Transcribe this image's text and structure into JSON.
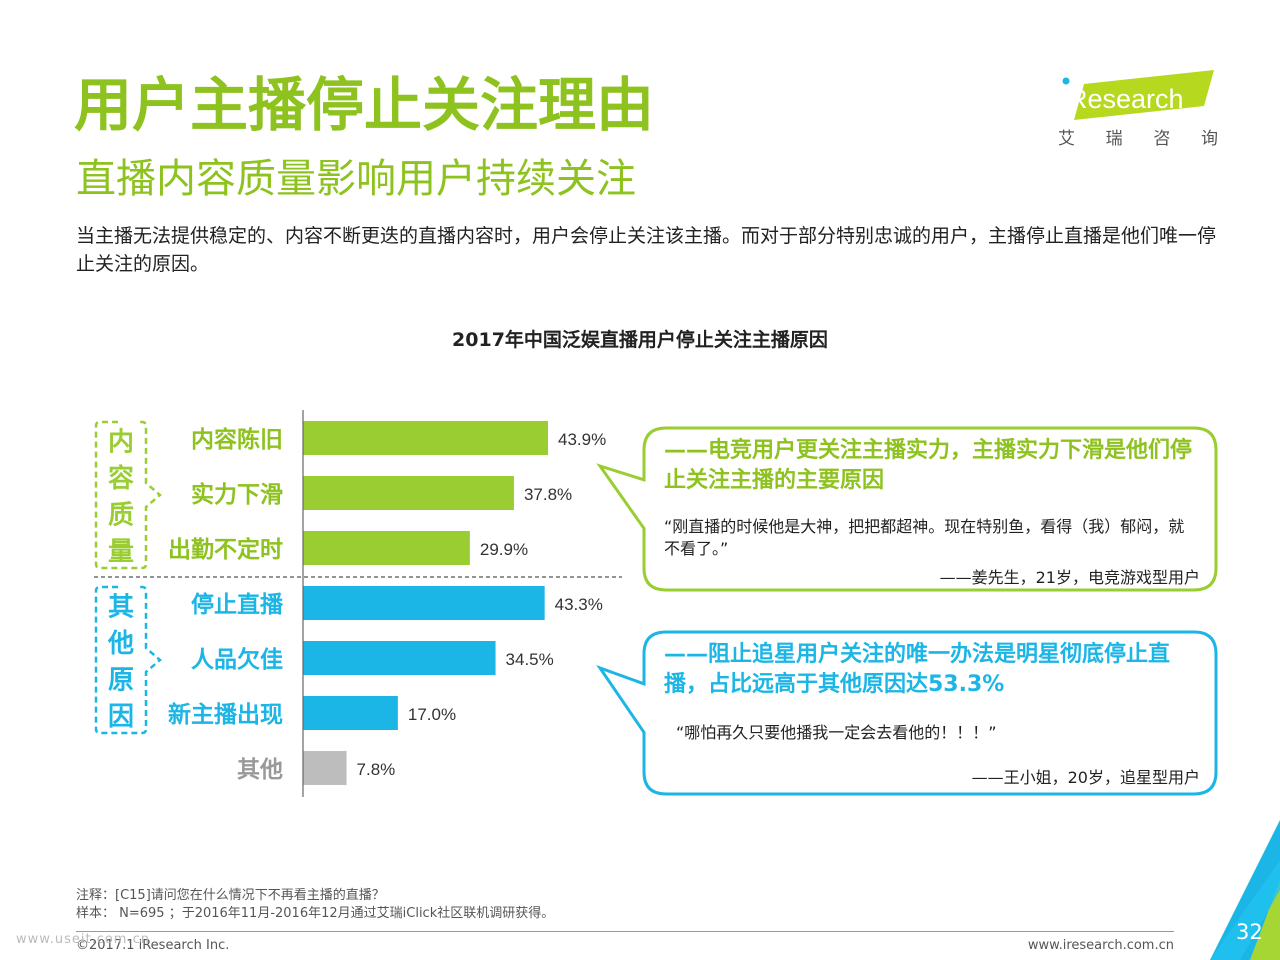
{
  "header": {
    "title": "用户主播停止关注理由",
    "subtitle": "直播内容质量影响用户持续关注",
    "description": "当主播无法提供稳定的、内容不断更迭的直播内容时，用户会停止关注该主播。而对于部分特别忠诚的用户，主播停止直播是他们唯一停止关注的原因。"
  },
  "logo": {
    "text": "iResearch",
    "sub": [
      "艾",
      "瑞",
      "咨",
      "询"
    ]
  },
  "colors": {
    "green": "#9ACD32",
    "green_text": "#8DC21F",
    "blue": "#1BB5E6",
    "gray": "#BDBDBD",
    "page_badge": "#1BB5E6"
  },
  "chart_data": {
    "type": "bar",
    "orientation": "horizontal",
    "title": "2017年中国泛娱直播用户停止关注主播原因",
    "categories": [
      "内容陈旧",
      "实力下滑",
      "出勤不定时",
      "停止直播",
      "人品欠佳",
      "新主播出现",
      "其他"
    ],
    "values": [
      43.9,
      37.8,
      29.9,
      43.3,
      34.5,
      17.0,
      7.8
    ],
    "value_labels": [
      "43.9%",
      "37.8%",
      "29.9%",
      "43.3%",
      "34.5%",
      "17.0%",
      "7.8%"
    ],
    "groups": [
      {
        "label": "内容质量",
        "chars": [
          "内",
          "容",
          "质",
          "量"
        ],
        "color": "green",
        "indices": [
          0,
          1,
          2
        ]
      },
      {
        "label": "其他原因",
        "chars": [
          "其",
          "他",
          "原",
          "因"
        ],
        "color": "blue",
        "indices": [
          3,
          4,
          5
        ]
      }
    ],
    "bar_colors": [
      "green",
      "green",
      "green",
      "blue",
      "blue",
      "blue",
      "gray"
    ],
    "xlim": [
      0,
      50
    ]
  },
  "callouts": [
    {
      "headline": "——电竞用户更关注主播实力，主播实力下滑是他们停止关注主播的主要原因",
      "quote": "“刚直播的时候他是大神，把把都超神。现在特别鱼，看得（我）郁闷，就不看了。”",
      "attribution": "——姜先生，21岁，电竞游戏型用户"
    },
    {
      "headline": "——阻止追星用户关注的唯一办法是明星彻底停止直播，占比远高于其他原因达53.3%",
      "quote": "“哪怕再久只要他播我一定会去看他的！！！”",
      "attribution": "——王小姐，20岁，追星型用户"
    }
  ],
  "footer": {
    "note": "注释：[C15]请问您在什么情况下不再看主播的直播？",
    "sample": "样本： N=695 ；于2016年11月-2016年12月通过艾瑞iClick社区联机调研获得。",
    "copyright": "©2017.1 iResearch Inc.",
    "website": "www.iresearch.com.cn",
    "watermark": "www.useit.com.cn",
    "page": "32"
  }
}
